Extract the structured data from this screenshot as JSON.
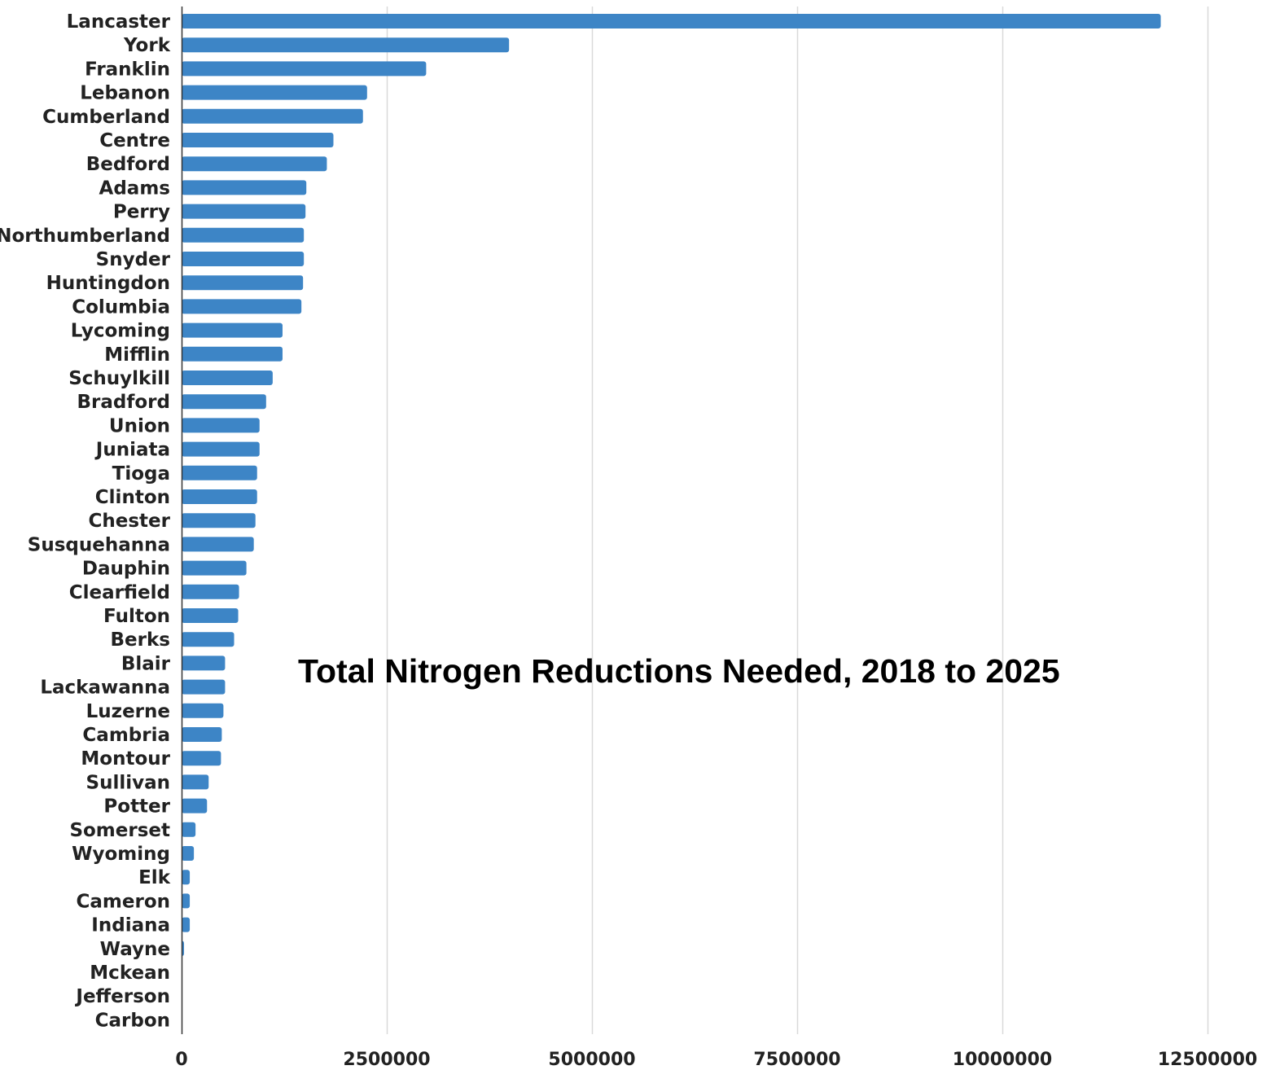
{
  "chart_data": {
    "type": "bar",
    "orientation": "horizontal",
    "title": "Total Nitrogen Reductions Needed, 2018 to 2025",
    "xlabel": "",
    "ylabel": "",
    "xlim": [
      0,
      12500000
    ],
    "x_ticks": [
      "0",
      "2500000",
      "5000000",
      "7500000",
      "10000000",
      "12500000"
    ],
    "x_tick_values": [
      0,
      2500000,
      5000000,
      7500000,
      10000000,
      12500000
    ],
    "grid": "vertical",
    "legend": "none",
    "bar_color": "#3d85c6",
    "gridline_color": "#d9d9d9",
    "categories": [
      "Lancaster",
      "York",
      "Franklin",
      "Lebanon",
      "Cumberland",
      "Centre",
      "Bedford",
      "Adams",
      "Perry",
      "Northumberland",
      "Snyder",
      "Huntingdon",
      "Columbia",
      "Lycoming",
      "Mifflin",
      "Schuylkill",
      "Bradford",
      "Union",
      "Juniata",
      "Tioga",
      "Clinton",
      "Chester",
      "Susquehanna",
      "Dauphin",
      "Clearfield",
      "Fulton",
      "Berks",
      "Blair",
      "Lackawanna",
      "Luzerne",
      "Cambria",
      "Montour",
      "Sullivan",
      "Potter",
      "Somerset",
      "Wyoming",
      "Elk",
      "Cameron",
      "Indiana",
      "Wayne",
      "Mckean",
      "Jefferson",
      "Carbon"
    ],
    "values": [
      11930000,
      3990000,
      2980000,
      2260000,
      2210000,
      1850000,
      1770000,
      1520000,
      1510000,
      1490000,
      1490000,
      1480000,
      1460000,
      1230000,
      1230000,
      1110000,
      1030000,
      950000,
      950000,
      920000,
      920000,
      900000,
      880000,
      790000,
      700000,
      690000,
      640000,
      530000,
      530000,
      510000,
      490000,
      480000,
      330000,
      310000,
      170000,
      150000,
      100000,
      100000,
      100000,
      30000,
      0,
      0,
      0
    ]
  }
}
